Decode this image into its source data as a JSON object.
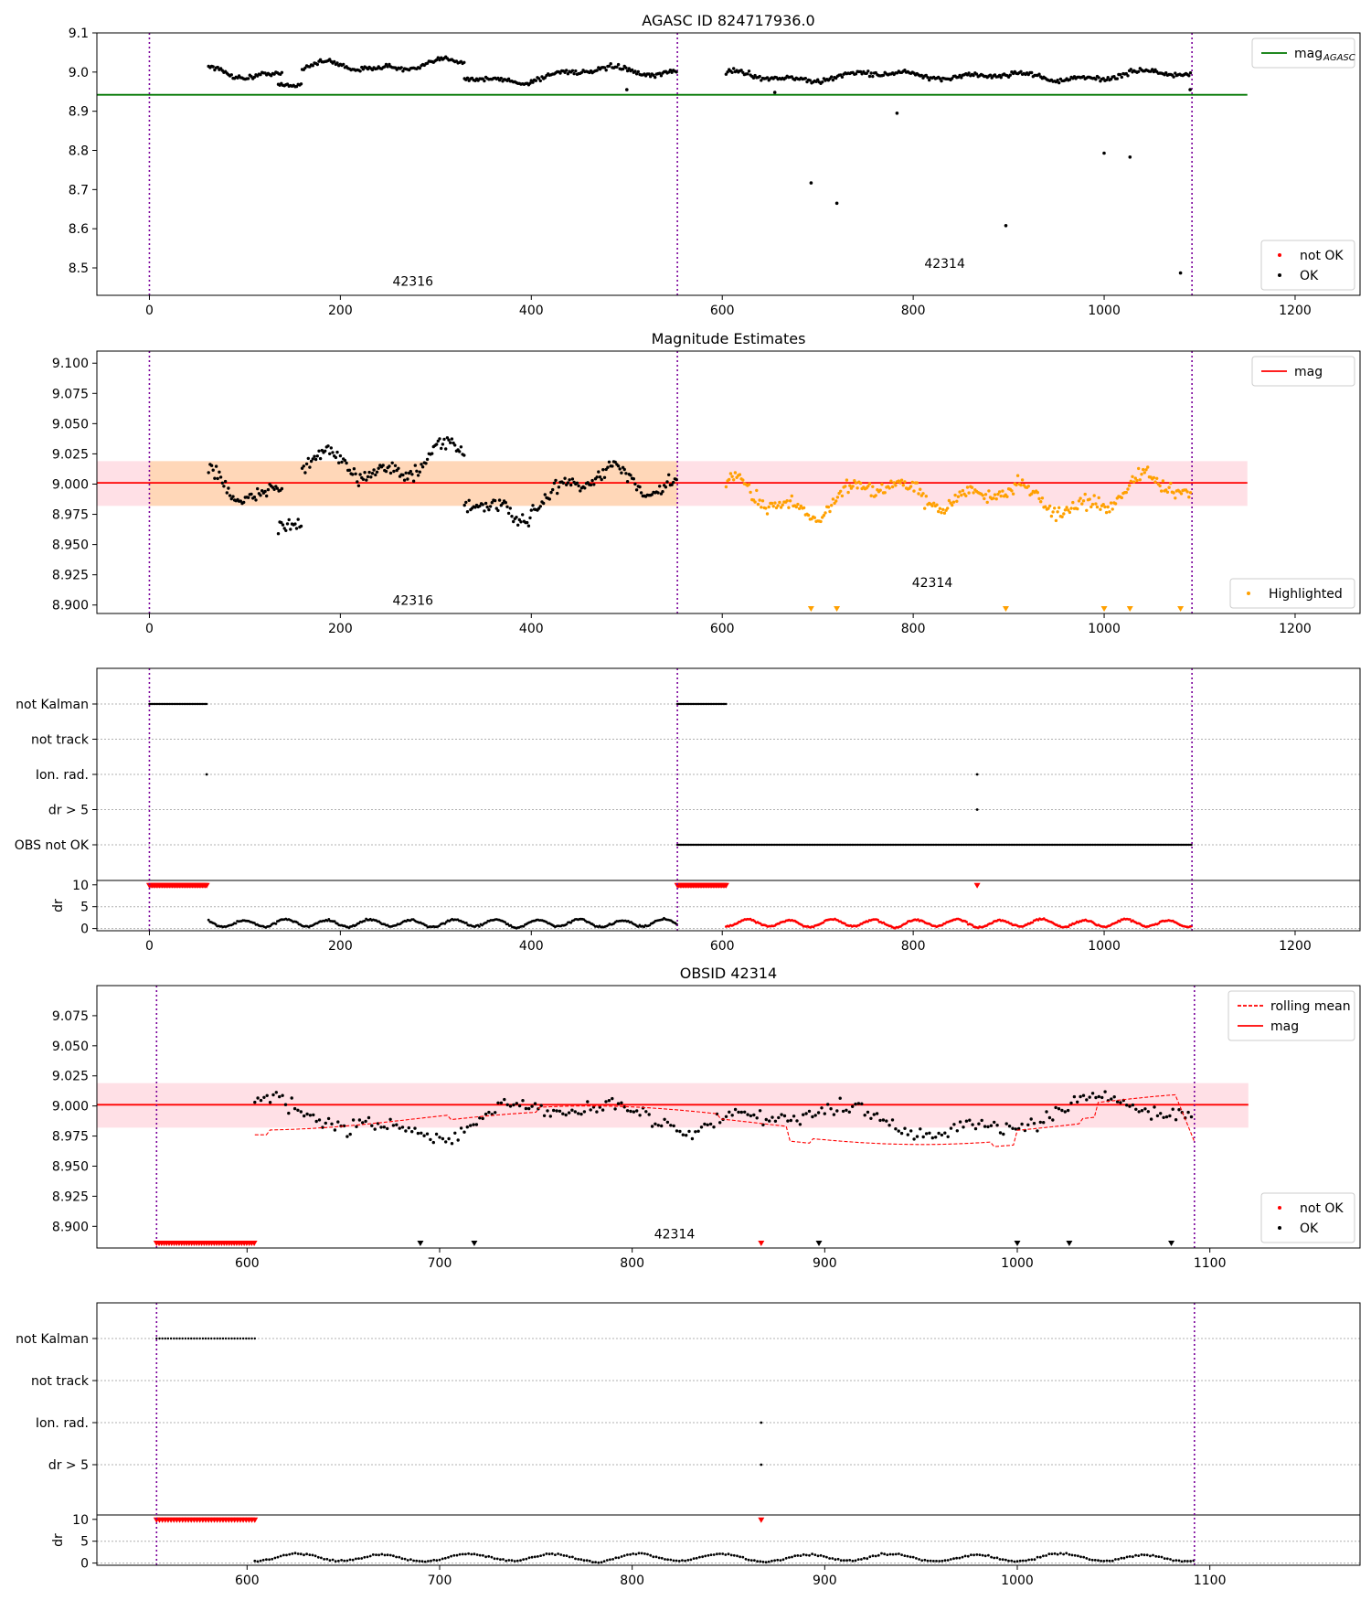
{
  "chart_data": [
    {
      "id": "p1",
      "type": "scatter",
      "title": "AGASC ID 824717936.0",
      "xlim": [
        -55,
        1268
      ],
      "ylim": [
        8.43,
        9.1
      ],
      "xticks": [
        0,
        200,
        400,
        600,
        800,
        1000,
        1200
      ],
      "yticks": [
        8.5,
        8.6,
        8.7,
        8.8,
        8.9,
        9.0,
        9.1
      ],
      "ytick_labels": [
        "8.5",
        "8.6",
        "8.7",
        "8.8",
        "8.9",
        "9.0",
        "9.1"
      ],
      "obs_boundaries": [
        0,
        553,
        1092
      ],
      "obs_labels": [
        {
          "text": "42316",
          "x": 276,
          "y": 8.455
        },
        {
          "text": "42314",
          "x": 833,
          "y": 8.5
        }
      ],
      "hline": {
        "y": 8.942,
        "x": [
          -55,
          1150
        ],
        "color": "#007700"
      },
      "series": [
        {
          "name": "not OK",
          "color": "#ff0000",
          "points": []
        },
        {
          "name": "OK",
          "color": "#000000",
          "segments": [
            {
              "x": [
                62,
                140
              ],
              "base": 9.0,
              "amp": 0.02
            },
            {
              "x": [
                135,
                160
              ],
              "base": 8.97,
              "amp": 0.01
            },
            {
              "x": [
                160,
                330
              ],
              "base": 9.015,
              "amp": 0.02
            },
            {
              "x": [
                330,
                400
              ],
              "base": 8.98,
              "amp": 0.01
            },
            {
              "x": [
                400,
                553
              ],
              "base": 9.0,
              "amp": 0.02
            },
            {
              "x": [
                604,
                1092
              ],
              "base": 8.99,
              "amp": 0.015
            }
          ],
          "outliers": [
            [
              693,
              8.717
            ],
            [
              720,
              8.665
            ],
            [
              783,
              8.895
            ],
            [
              897,
              8.608
            ],
            [
              1000,
              8.793
            ],
            [
              1027,
              8.783
            ],
            [
              1080,
              8.487
            ],
            [
              1090,
              8.955
            ],
            [
              655,
              8.948
            ],
            [
              500,
              8.955
            ]
          ]
        }
      ],
      "legend_top": [
        {
          "label": "mag",
          "sub": "AGASC",
          "style": "line",
          "color": "#007700"
        }
      ],
      "legend_bottom": [
        {
          "label": "not OK",
          "color": "#ff0000"
        },
        {
          "label": "OK",
          "color": "#000000"
        }
      ]
    },
    {
      "id": "p2",
      "type": "scatter",
      "title": "Magnitude Estimates",
      "xlim": [
        -55,
        1268
      ],
      "ylim": [
        8.893,
        9.11
      ],
      "xticks": [
        0,
        200,
        400,
        600,
        800,
        1000,
        1200
      ],
      "yticks": [
        8.9,
        8.925,
        8.95,
        8.975,
        9.0,
        9.025,
        9.05,
        9.075,
        9.1
      ],
      "ytick_labels": [
        "8.900",
        "8.925",
        "8.950",
        "8.975",
        "9.000",
        "9.025",
        "9.050",
        "9.075",
        "9.100"
      ],
      "obs_boundaries": [
        0,
        553,
        1092
      ],
      "obs_labels": [
        {
          "text": "42316",
          "x": 276,
          "y": 8.9
        },
        {
          "text": "42314",
          "x": 820,
          "y": 8.915
        }
      ],
      "hline": {
        "y": 9.001,
        "x": [
          -55,
          1150
        ],
        "color": "#ff0000"
      },
      "bands": [
        {
          "x": [
            0,
            553
          ],
          "y": [
            8.982,
            9.019
          ],
          "color": "#ffd7b8"
        },
        {
          "x": [
            553,
            1150
          ],
          "y": [
            8.982,
            9.019
          ],
          "color": "#ffe0e6"
        },
        {
          "x": [
            -55,
            0
          ],
          "y": [
            8.982,
            9.019
          ],
          "color": "#ffe0e6"
        }
      ],
      "series": [
        {
          "name": "",
          "color": "#000000",
          "segments": [
            {
              "x": [
                62,
                140
              ],
              "base": 9.0,
              "amp": 0.02
            },
            {
              "x": [
                135,
                160
              ],
              "base": 8.97,
              "amp": 0.012
            },
            {
              "x": [
                160,
                330
              ],
              "base": 9.015,
              "amp": 0.02
            },
            {
              "x": [
                330,
                400
              ],
              "base": 8.98,
              "amp": 0.012
            },
            {
              "x": [
                400,
                553
              ],
              "base": 9.0,
              "amp": 0.022
            }
          ]
        },
        {
          "name": "Highlighted",
          "color": "#ffa000",
          "segments": [
            {
              "x": [
                604,
                1092
              ],
              "base": 8.99,
              "amp": 0.018
            }
          ],
          "triangles": [
            693,
            720,
            897,
            1000,
            1027,
            1080
          ]
        }
      ],
      "legend_top": [
        {
          "label": "mag",
          "style": "line",
          "color": "#ff0000"
        }
      ],
      "legend_bottom": [
        {
          "label": "Highlighted",
          "color": "#ffa000"
        }
      ]
    },
    {
      "id": "p3",
      "type": "scatter",
      "xlim": [
        -55,
        1268
      ],
      "xticks": [
        0,
        200,
        400,
        600,
        800,
        1000,
        1200
      ],
      "obs_boundaries": [
        0,
        553,
        1092
      ],
      "flag_rows": [
        "not Kalman",
        "not track",
        "Ion. rad.",
        "dr > 5",
        "OBS not OK"
      ],
      "flag_spans": [
        {
          "row": "not Kalman",
          "x": [
            0,
            60
          ]
        },
        {
          "row": "not Kalman",
          "x": [
            553,
            604
          ]
        },
        {
          "row": "OBS not OK",
          "x": [
            553,
            1092
          ]
        }
      ],
      "flag_points": [
        {
          "row": "Ion. rad.",
          "x": 60
        },
        {
          "row": "Ion. rad.",
          "x": 867
        },
        {
          "row": "dr > 5",
          "x": 867
        }
      ],
      "dr_ylim": [
        -0.5,
        11
      ],
      "dr_yticks": [
        0,
        5,
        10
      ],
      "dr_ylabel": "dr",
      "dr_red_spans": [
        [
          0,
          60
        ],
        [
          553,
          604
        ]
      ],
      "dr_red_points": [
        867
      ],
      "dr_segments": [
        {
          "x": [
            62,
            553
          ],
          "color": "#000000"
        },
        {
          "x": [
            604,
            1092
          ],
          "color": "#ff0000"
        }
      ]
    },
    {
      "id": "p4",
      "type": "scatter",
      "title": "OBSID 42314",
      "xlim": [
        522,
        1178
      ],
      "ylim": [
        8.882,
        9.1
      ],
      "xticks": [
        600,
        700,
        800,
        900,
        1000,
        1100
      ],
      "yticks": [
        8.9,
        8.925,
        8.95,
        8.975,
        9.0,
        9.025,
        9.05,
        9.075
      ],
      "ytick_labels": [
        "8.900",
        "8.925",
        "8.950",
        "8.975",
        "9.000",
        "9.025",
        "9.050",
        "9.075"
      ],
      "obs_boundaries": [
        553,
        1092
      ],
      "obs_labels": [
        {
          "text": "42314",
          "x": 822,
          "y": 8.89
        }
      ],
      "hline": {
        "y": 9.001,
        "x": [
          522,
          1120
        ],
        "color": "#ff0000"
      },
      "bands": [
        {
          "x": [
            522,
            1120
          ],
          "y": [
            8.982,
            9.019
          ],
          "color": "#ffe0e6"
        }
      ],
      "series": [
        {
          "name": "not OK",
          "color": "#ff0000",
          "red_strip": [
            553,
            604
          ],
          "red_points": [
            867
          ]
        },
        {
          "name": "OK",
          "color": "#000000",
          "segments": [
            {
              "x": [
                604,
                1092
              ],
              "base": 8.99,
              "amp": 0.018
            }
          ],
          "triangles": [
            690,
            718,
            897,
            1000,
            1027,
            1080
          ]
        },
        {
          "name": "rolling mean",
          "color": "#ff0000",
          "rolling": true
        }
      ],
      "legend_top": [
        {
          "label": "rolling mean",
          "style": "dashed",
          "color": "#ff0000"
        },
        {
          "label": "mag",
          "style": "line",
          "color": "#ff0000"
        }
      ],
      "legend_bottom": [
        {
          "label": "not OK",
          "color": "#ff0000"
        },
        {
          "label": "OK",
          "color": "#000000"
        }
      ]
    },
    {
      "id": "p5",
      "type": "scatter",
      "xlim": [
        522,
        1178
      ],
      "xticks": [
        600,
        700,
        800,
        900,
        1000,
        1100
      ],
      "obs_boundaries": [
        553,
        1092
      ],
      "flag_rows": [
        "not Kalman",
        "not track",
        "Ion. rad.",
        "dr > 5"
      ],
      "flag_spans": [
        {
          "row": "not Kalman",
          "x": [
            553,
            604
          ]
        }
      ],
      "flag_points": [
        {
          "row": "Ion. rad.",
          "x": 867
        },
        {
          "row": "dr > 5",
          "x": 867
        }
      ],
      "dr_ylim": [
        -0.5,
        11
      ],
      "dr_yticks": [
        0,
        5,
        10
      ],
      "dr_ylabel": "dr",
      "dr_red_spans": [
        [
          553,
          604
        ]
      ],
      "dr_red_points": [
        867
      ],
      "dr_segments": [
        {
          "x": [
            604,
            1092
          ],
          "color": "#000000"
        }
      ]
    }
  ]
}
